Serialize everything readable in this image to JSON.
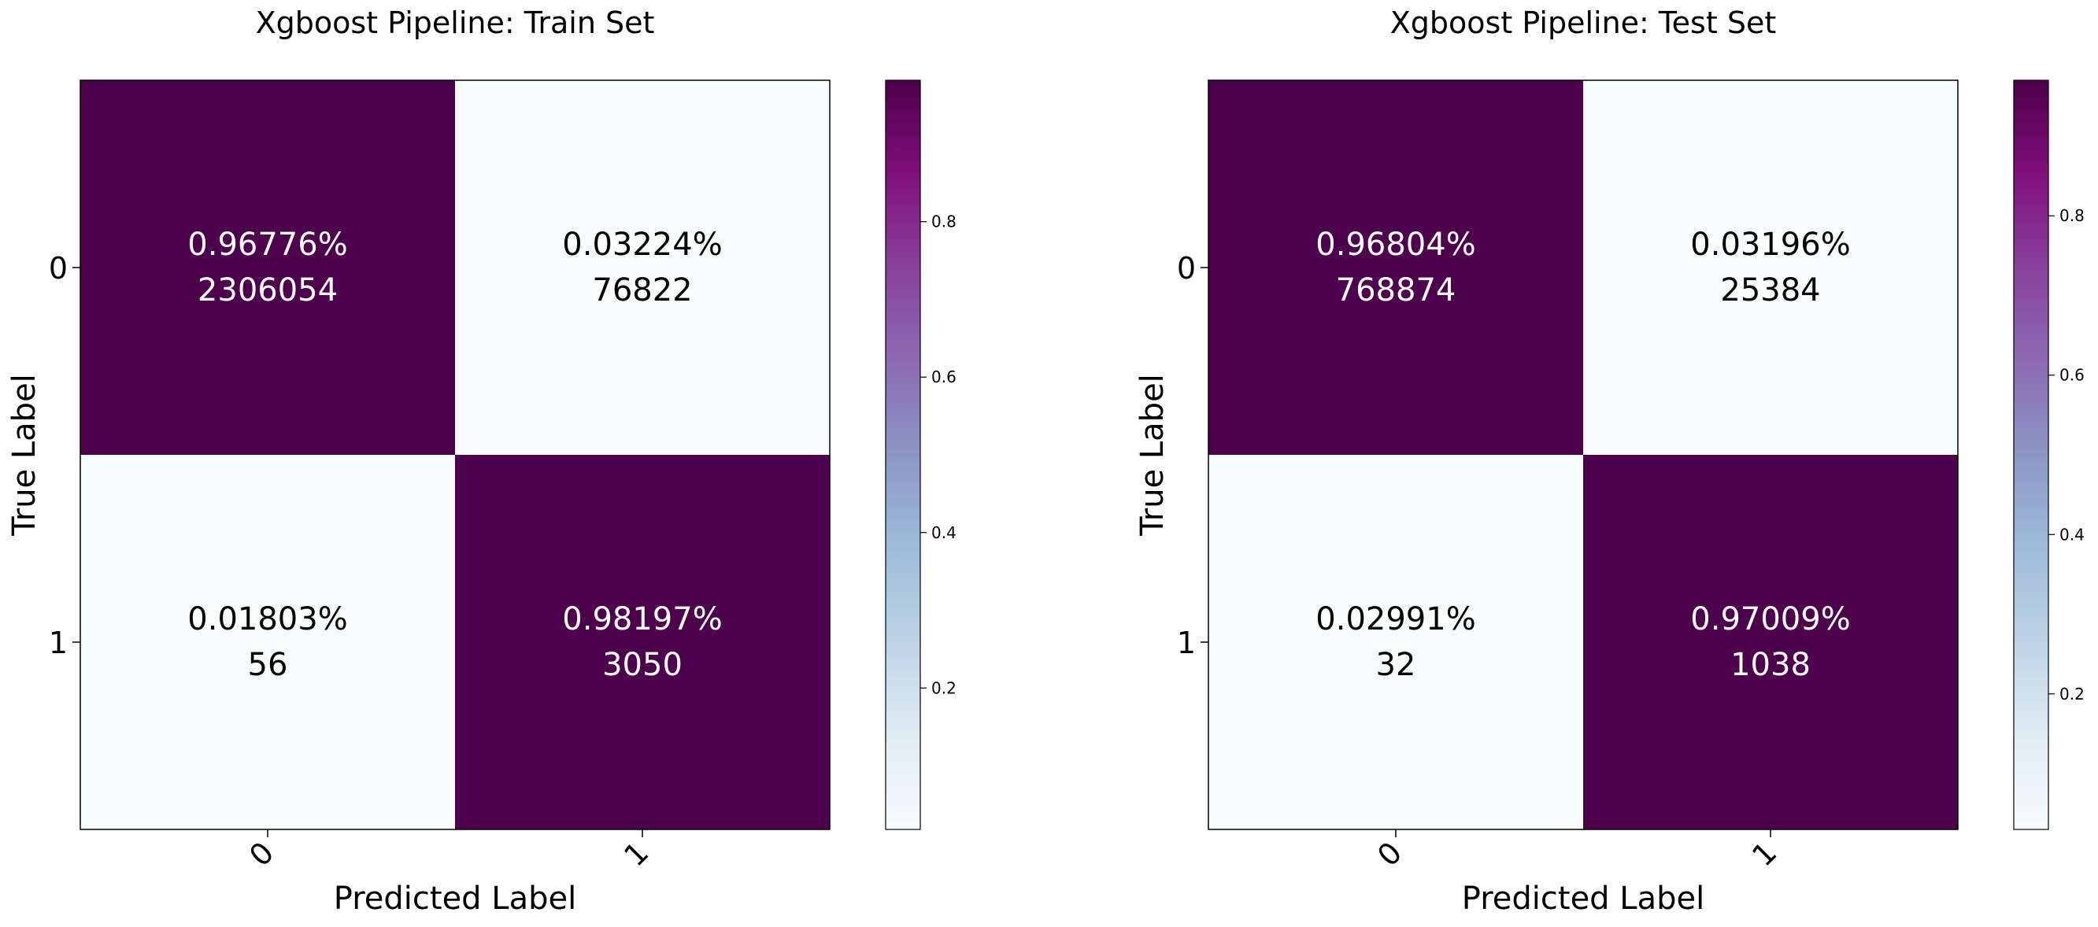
{
  "chart_data": [
    {
      "type": "heatmap",
      "title": "Xgboost Pipeline: Train Set",
      "xlabel": "Predicted Label",
      "ylabel": "True Label",
      "x_categories": [
        "0",
        "1"
      ],
      "y_categories": [
        "0",
        "1"
      ],
      "values": [
        [
          0.96776,
          0.03224
        ],
        [
          0.01803,
          0.98197
        ]
      ],
      "cell_labels": [
        [
          "0.96776%",
          "0.03224%"
        ],
        [
          "0.01803%",
          "0.98197%"
        ]
      ],
      "counts": [
        [
          "2306054",
          "76822"
        ],
        [
          "56",
          "3050"
        ]
      ],
      "colorbar": {
        "ticks": [
          "0.2",
          "0.4",
          "0.6",
          "0.8"
        ],
        "range": [
          0.01803,
          0.98197
        ]
      }
    },
    {
      "type": "heatmap",
      "title": "Xgboost Pipeline: Test Set",
      "xlabel": "Predicted Label",
      "ylabel": "True Label",
      "x_categories": [
        "0",
        "1"
      ],
      "y_categories": [
        "0",
        "1"
      ],
      "values": [
        [
          0.96804,
          0.03196
        ],
        [
          0.02991,
          0.97009
        ]
      ],
      "cell_labels": [
        [
          "0.96804%",
          "0.03196%"
        ],
        [
          "0.02991%",
          "0.97009%"
        ]
      ],
      "counts": [
        [
          "768874",
          "25384"
        ],
        [
          "32",
          "1038"
        ]
      ],
      "colorbar": {
        "ticks": [
          "0.2",
          "0.4",
          "0.6",
          "0.8"
        ],
        "range": [
          0.02991,
          0.97009
        ]
      }
    }
  ],
  "colors": {
    "colormap": "BuPu",
    "dark_cell": "#4d004b",
    "light_cell": "#f7fcfd",
    "dark_text": "#ffffff",
    "light_text": "#000000"
  }
}
